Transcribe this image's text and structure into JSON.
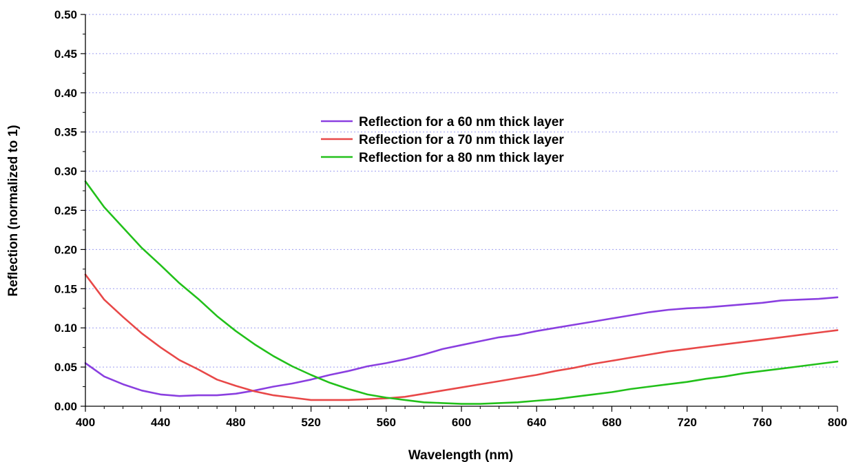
{
  "chart_data": {
    "type": "line",
    "xlabel": "Wavelength (nm)",
    "ylabel": "Reflection (normalized to 1)",
    "xlim": [
      400,
      800
    ],
    "ylim": [
      0,
      0.5
    ],
    "x_ticks": [
      "400",
      "440",
      "480",
      "520",
      "560",
      "600",
      "640",
      "680",
      "720",
      "760",
      "800"
    ],
    "y_ticks": [
      "0.00",
      "0.05",
      "0.10",
      "0.15",
      "0.20",
      "0.25",
      "0.30",
      "0.35",
      "0.40",
      "0.45",
      "0.50"
    ],
    "grid": "horizontal dotted",
    "legend_position": "center",
    "series": [
      {
        "name": "Reflection for a 60 nm thick layer",
        "color": "#8a3fe0",
        "x": [
          400,
          410,
          420,
          430,
          440,
          450,
          460,
          470,
          480,
          490,
          500,
          510,
          520,
          530,
          540,
          550,
          560,
          570,
          580,
          590,
          600,
          610,
          620,
          630,
          640,
          650,
          660,
          670,
          680,
          690,
          700,
          710,
          720,
          730,
          740,
          750,
          760,
          770,
          780,
          790,
          800
        ],
        "y": [
          0.055,
          0.038,
          0.028,
          0.02,
          0.015,
          0.013,
          0.014,
          0.014,
          0.016,
          0.02,
          0.025,
          0.029,
          0.034,
          0.04,
          0.045,
          0.051,
          0.055,
          0.06,
          0.066,
          0.073,
          0.078,
          0.083,
          0.088,
          0.091,
          0.096,
          0.1,
          0.104,
          0.108,
          0.112,
          0.116,
          0.12,
          0.123,
          0.125,
          0.126,
          0.128,
          0.13,
          0.132,
          0.135,
          0.136,
          0.137,
          0.139
        ]
      },
      {
        "name": "Reflection for a 70 nm thick layer",
        "color": "#e84848",
        "x": [
          400,
          410,
          420,
          430,
          440,
          450,
          460,
          470,
          480,
          490,
          500,
          510,
          520,
          530,
          540,
          550,
          560,
          570,
          580,
          590,
          600,
          610,
          620,
          630,
          640,
          650,
          660,
          670,
          680,
          690,
          700,
          710,
          720,
          730,
          740,
          750,
          760,
          770,
          780,
          790,
          800
        ],
        "y": [
          0.168,
          0.136,
          0.114,
          0.093,
          0.075,
          0.059,
          0.047,
          0.034,
          0.026,
          0.019,
          0.014,
          0.011,
          0.008,
          0.008,
          0.008,
          0.009,
          0.01,
          0.012,
          0.016,
          0.02,
          0.024,
          0.028,
          0.032,
          0.036,
          0.04,
          0.045,
          0.049,
          0.054,
          0.058,
          0.062,
          0.066,
          0.07,
          0.073,
          0.076,
          0.079,
          0.082,
          0.085,
          0.088,
          0.091,
          0.094,
          0.097
        ]
      },
      {
        "name": "Reflection for a 80 nm thick layer",
        "color": "#22c01a",
        "x": [
          400,
          410,
          420,
          430,
          440,
          450,
          460,
          470,
          480,
          490,
          500,
          510,
          520,
          530,
          540,
          550,
          560,
          570,
          580,
          590,
          600,
          610,
          620,
          630,
          640,
          650,
          660,
          670,
          680,
          690,
          700,
          710,
          720,
          730,
          740,
          750,
          760,
          770,
          780,
          790,
          800
        ],
        "y": [
          0.287,
          0.254,
          0.228,
          0.202,
          0.18,
          0.157,
          0.137,
          0.115,
          0.096,
          0.079,
          0.064,
          0.051,
          0.04,
          0.03,
          0.022,
          0.015,
          0.011,
          0.008,
          0.005,
          0.004,
          0.003,
          0.003,
          0.004,
          0.005,
          0.007,
          0.009,
          0.012,
          0.015,
          0.018,
          0.022,
          0.025,
          0.028,
          0.031,
          0.035,
          0.038,
          0.042,
          0.045,
          0.048,
          0.051,
          0.054,
          0.057
        ]
      }
    ]
  }
}
